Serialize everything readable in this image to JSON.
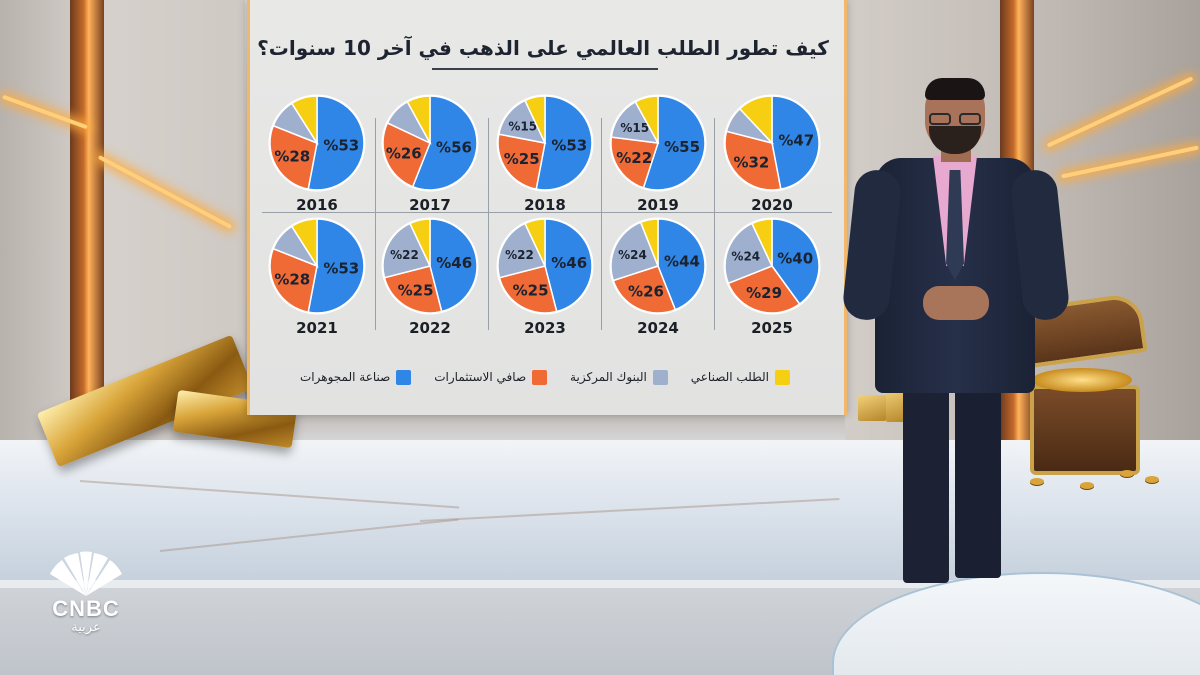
{
  "title": "كيف تطور الطلب العالمي على الذهب في آخر 10 سنوات؟",
  "logo": {
    "text": "CNBC",
    "sub": "عربية"
  },
  "colors": {
    "jewelry": "#2f86e6",
    "investment": "#f06a35",
    "central_banks": "#9fb0cf",
    "industrial": "#f6cf12"
  },
  "chart_data": {
    "type": "pie",
    "title": "كيف تطور الطلب العالمي على الذهب في آخر 10 سنوات؟",
    "legend_position": "bottom",
    "series": [
      {
        "key": "jewelry",
        "name": "صناعة المجوهرات"
      },
      {
        "key": "investment",
        "name": "صافي الاستثمارات"
      },
      {
        "key": "central_banks",
        "name": "البنوك المركزية"
      },
      {
        "key": "industrial",
        "name": "الطلب الصناعي"
      }
    ],
    "pies": [
      {
        "year": "2016",
        "values": [
          53,
          28,
          10,
          9
        ],
        "labels": [
          "%53",
          "%28",
          "",
          ""
        ]
      },
      {
        "year": "2017",
        "values": [
          56,
          26,
          10,
          8
        ],
        "labels": [
          "%56",
          "%26",
          "",
          ""
        ]
      },
      {
        "year": "2018",
        "values": [
          53,
          25,
          15,
          7
        ],
        "labels": [
          "%53",
          "%25",
          "%15",
          ""
        ]
      },
      {
        "year": "2019",
        "values": [
          55,
          22,
          15,
          8
        ],
        "labels": [
          "%55",
          "%22",
          "%15",
          ""
        ]
      },
      {
        "year": "2020",
        "values": [
          47,
          32,
          9,
          12
        ],
        "labels": [
          "%47",
          "%32",
          "",
          ""
        ]
      },
      {
        "year": "2021",
        "values": [
          53,
          28,
          10,
          9
        ],
        "labels": [
          "%53",
          "%28",
          "",
          ""
        ]
      },
      {
        "year": "2022",
        "values": [
          46,
          25,
          22,
          7
        ],
        "labels": [
          "%46",
          "%25",
          "%22",
          ""
        ]
      },
      {
        "year": "2023",
        "values": [
          46,
          25,
          22,
          7
        ],
        "labels": [
          "%46",
          "%25",
          "%22",
          ""
        ]
      },
      {
        "year": "2024",
        "values": [
          44,
          26,
          24,
          6
        ],
        "labels": [
          "%44",
          "%26",
          "%24",
          ""
        ]
      },
      {
        "year": "2025",
        "values": [
          40,
          29,
          24,
          7
        ],
        "labels": [
          "%40",
          "%29",
          "%24",
          ""
        ]
      }
    ]
  }
}
